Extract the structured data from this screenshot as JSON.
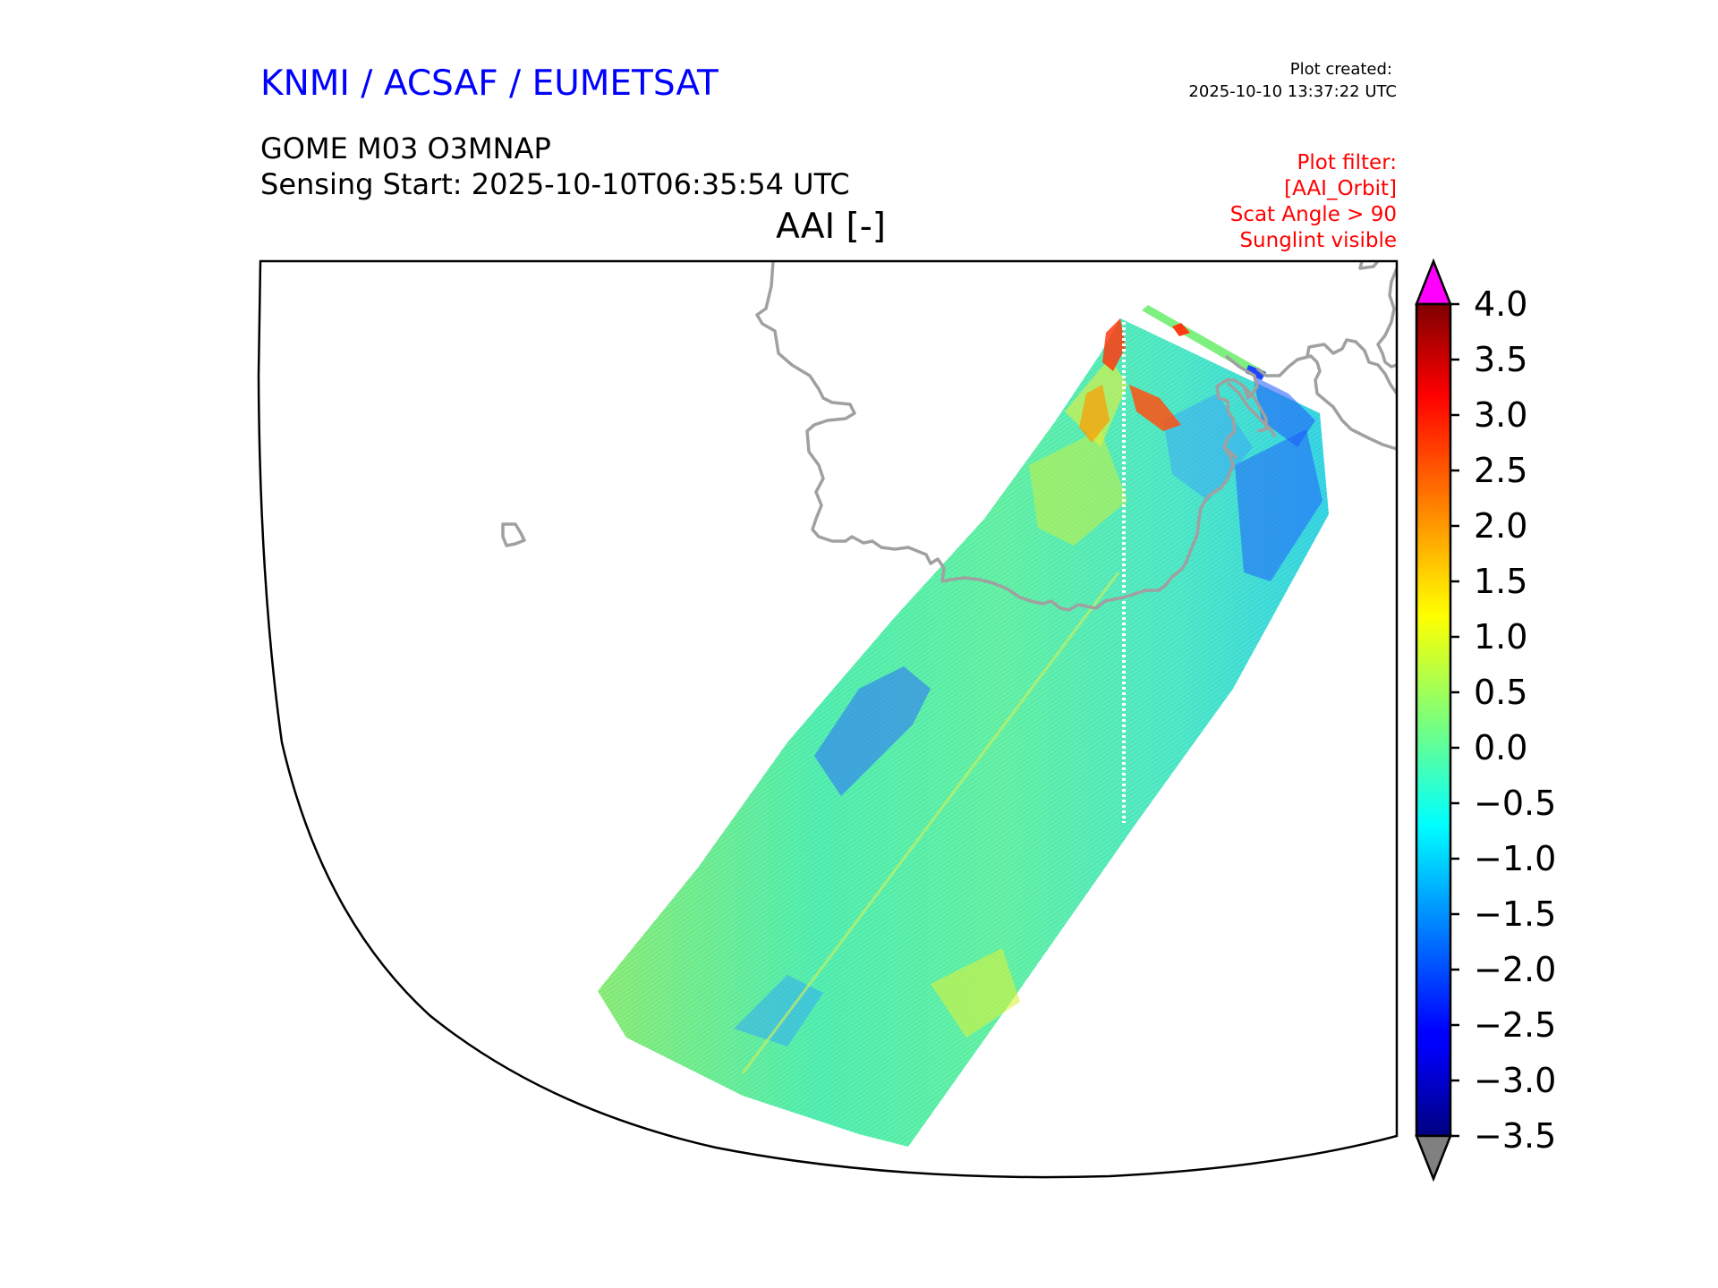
{
  "header": {
    "agency": "KNMI / ACSAF / EUMETSAT",
    "plot_created_label": "Plot created:",
    "plot_created_time": "2025-10-10 13:37:22 UTC",
    "product": "GOME M03 O3MNAP",
    "sensing_start": "Sensing Start: 2025-10-10T06:35:54 UTC",
    "variable": "AAI [-]"
  },
  "filter": {
    "lines": [
      "Plot filter:",
      "[AAI_Orbit]",
      "Scat Angle > 90",
      "Sunglint visible"
    ]
  },
  "colorbar": {
    "ticks": [
      "4.0",
      "3.5",
      "3.0",
      "2.5",
      "2.0",
      "1.5",
      "1.0",
      "0.5",
      "0.0",
      "−0.5",
      "−1.0",
      "−1.5",
      "−2.0",
      "−2.5",
      "−3.0",
      "−3.5"
    ],
    "min": -3.5,
    "max": 4.0,
    "colormap": "jet",
    "over_color": "#ff00ff",
    "under_color": "#808080"
  },
  "colors": {
    "agency": "#0000ff",
    "filter": "#ff0000",
    "coastline": "#a0a0a0",
    "frame": "#000000"
  }
}
